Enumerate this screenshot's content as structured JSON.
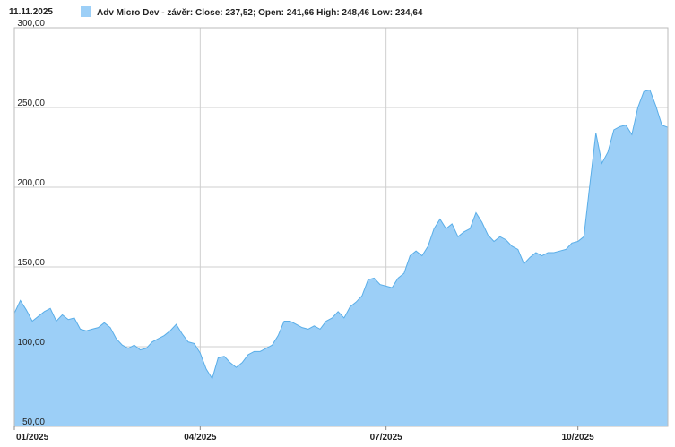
{
  "chart_data": {
    "type": "area",
    "date": "11.11.2025",
    "series": [
      {
        "name": "Adv Micro Dev - závěr: Close: 237,52; Open: 241,66 High: 248,46 Low: 234,64",
        "color": "#9ccff7",
        "line_color": "#5aaee8",
        "values": [
          121,
          129,
          123,
          116,
          119,
          122,
          124,
          116,
          120,
          117,
          118,
          111,
          110,
          111,
          112,
          115,
          112,
          105,
          101,
          99,
          101,
          98,
          99,
          103,
          105,
          107,
          110,
          114,
          108,
          103,
          102,
          96,
          86,
          80,
          93,
          94,
          90,
          87,
          90,
          95,
          97,
          97,
          99,
          101,
          107,
          116,
          116,
          114,
          112,
          111,
          113,
          111,
          116,
          118,
          122,
          118,
          125,
          128,
          132,
          142,
          143,
          139,
          138,
          137,
          143,
          146,
          157,
          160,
          157,
          163,
          174,
          180,
          174,
          177,
          169,
          172,
          174,
          184,
          178,
          170,
          166,
          169,
          167,
          163,
          161,
          152,
          156,
          159,
          157,
          159,
          159,
          160,
          161,
          165,
          166,
          169,
          202,
          234,
          215,
          222,
          236,
          238,
          239,
          233,
          250,
          260,
          261,
          251,
          239,
          237.52
        ]
      }
    ],
    "categories": [
      "01/2025",
      null,
      null,
      null,
      null,
      null,
      null,
      null,
      null,
      null,
      null,
      null,
      null,
      null,
      null,
      null,
      null,
      null,
      null,
      null,
      null,
      null,
      null,
      null,
      null,
      null,
      null,
      null,
      null,
      null,
      null,
      "04/2025",
      null,
      null,
      null,
      null,
      null,
      null,
      null,
      null,
      null,
      null,
      null,
      null,
      null,
      null,
      null,
      null,
      null,
      null,
      null,
      null,
      null,
      null,
      null,
      null,
      null,
      null,
      null,
      null,
      null,
      null,
      "07/2025",
      null,
      null,
      null,
      null,
      null,
      null,
      null,
      null,
      null,
      null,
      null,
      null,
      null,
      null,
      null,
      null,
      null,
      null,
      null,
      null,
      null,
      null,
      null,
      null,
      null,
      null,
      null,
      null,
      null,
      null,
      null,
      "10/2025",
      null,
      null,
      null,
      null,
      null,
      null,
      null,
      null,
      null,
      null,
      null,
      null,
      null,
      null,
      null
    ],
    "ylim": [
      50,
      300
    ],
    "yticks": [
      {
        "value": 50,
        "label": "50,00"
      },
      {
        "value": 100,
        "label": "100,00"
      },
      {
        "value": 150,
        "label": "150,00"
      },
      {
        "value": 200,
        "label": "200,00"
      },
      {
        "value": 250,
        "label": "250,00"
      },
      {
        "value": 300,
        "label": "300,00"
      }
    ],
    "grid": true
  }
}
